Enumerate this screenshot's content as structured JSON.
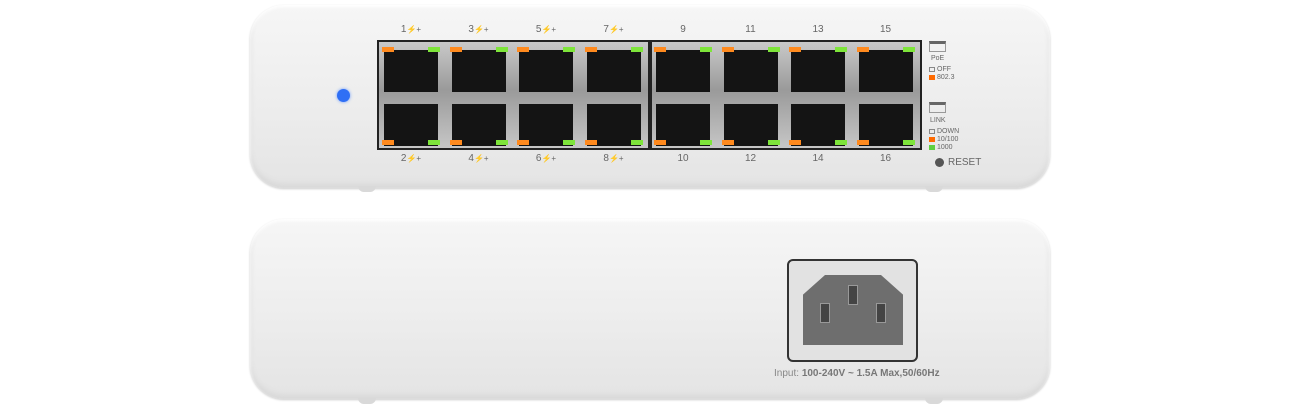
{
  "front": {
    "top_port_labels": [
      "1",
      "3",
      "5",
      "7",
      "9",
      "11",
      "13",
      "15"
    ],
    "bottom_port_labels": [
      "2",
      "4",
      "6",
      "8",
      "10",
      "12",
      "14",
      "16"
    ],
    "poe_ports": [
      "1",
      "2",
      "3",
      "4",
      "5",
      "6",
      "7",
      "8"
    ],
    "poe_symbol": "⚡+",
    "status_led_color": "#2f6ff5",
    "port_led_colors": {
      "left": "#ff8a1e",
      "right": "#7ee53a"
    },
    "legend": {
      "poe_title": "PoE",
      "poe_items": [
        {
          "label": "OFF",
          "color": "none"
        },
        {
          "label": "802.3",
          "color": "#ff6a00"
        }
      ],
      "link_title": "LINK",
      "link_items": [
        {
          "label": "DOWN",
          "color": "none"
        },
        {
          "label": "10/100",
          "color": "#ff6a00"
        },
        {
          "label": "1000",
          "color": "#5fd040"
        }
      ]
    },
    "reset_label": "RESET"
  },
  "back": {
    "input_prefix": "Input:",
    "input_spec": "100-240V ~ 1.5A Max,50/60Hz"
  }
}
